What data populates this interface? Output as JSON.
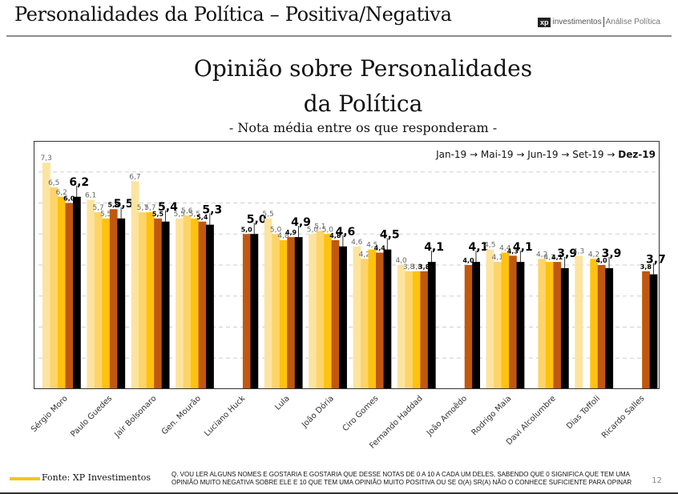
{
  "header": {
    "title": "Personalidades da Política – Positiva/Negativa",
    "brand_logo": "xp",
    "brand_name": "investimentos",
    "brand_sub": "Análise Política"
  },
  "chart_data": {
    "type": "bar",
    "title_line1": "Opinião sobre Personalidades",
    "title_line2": "da Política",
    "subtitle": "- Nota média entre os que responderam -",
    "legend_text": "Jan-19 → Mai-19 → Jun-19 → Set-19 → ",
    "legend_last": "Dez-19",
    "legend_placement": "top-right",
    "xlabel": "",
    "ylabel": "",
    "ylim": [
      0,
      8
    ],
    "grid": true,
    "categories": [
      "Sérgio Moro",
      "Paulo Guedes",
      "Jair Bolsonaro",
      "Gen. Mourão",
      "Luciano Huck",
      "Lula",
      "João Dória",
      "Ciro Gomes",
      "Fernando Haddad",
      "João Amoêdo",
      "Rodrigo Maia",
      "Davi Alcolumbre",
      "Dias Toffoli",
      "Ricardo Salles"
    ],
    "series": [
      {
        "name": "Jan-19",
        "color": "#FCE4A0",
        "values": [
          7.3,
          6.1,
          6.7,
          5.5,
          null,
          5.5,
          5.0,
          4.6,
          4.0,
          null,
          4.5,
          null,
          4.3,
          null
        ]
      },
      {
        "name": "Mai-19",
        "color": "#FDD46A",
        "values": [
          6.5,
          5.7,
          5.7,
          5.6,
          null,
          5.0,
          5.1,
          4.2,
          3.8,
          null,
          4.1,
          4.2,
          null,
          null
        ]
      },
      {
        "name": "Jun-19",
        "color": "#FFC20E",
        "values": [
          6.2,
          5.5,
          5.7,
          5.5,
          null,
          4.8,
          5.0,
          4.5,
          3.8,
          null,
          4.4,
          4.1,
          4.2,
          null
        ]
      },
      {
        "name": "Set-19",
        "color": "#C0580F",
        "values": [
          6.0,
          5.8,
          5.5,
          5.4,
          5.0,
          4.9,
          4.8,
          4.4,
          3.8,
          4.0,
          4.3,
          4.1,
          4.0,
          3.8
        ]
      },
      {
        "name": "Dez-19",
        "color": "#000000",
        "values": [
          6.2,
          5.5,
          5.4,
          5.3,
          5.0,
          4.9,
          4.6,
          4.5,
          4.1,
          4.1,
          4.1,
          3.9,
          3.9,
          3.7
        ]
      }
    ]
  },
  "footer": {
    "source": "Fonte: XP Investimentos",
    "question_line1": "Q. VOU LER ALGUNS NOMES E GOSTARIA E GOSTARIA QUE DESSE NOTAS DE 0 A 10 A CADA UM DELES, SABENDO QUE 0 SIGNIFICA QUE TEM UMA",
    "question_line2": "OPINIÃO MUITO NEGATIVA SOBRE ELE E 10 QUE TEM UMA OPINIÃO MUITO POSITIVA OU SE O(A) SR(A) NÃO O CONHECE SUFICIENTE PARA OPINAR",
    "page_number": "12",
    "accent_color": "#F5C518"
  }
}
